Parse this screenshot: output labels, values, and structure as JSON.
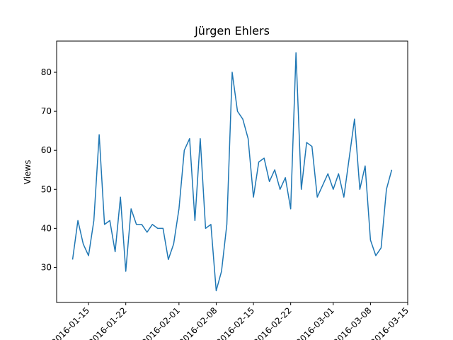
{
  "chart_data": {
    "type": "line",
    "title": "Jürgen Ehlers",
    "xlabel": "",
    "ylabel": "Views",
    "grid": false,
    "xlim": [
      "2016-01-09",
      "2016-03-15"
    ],
    "ylim": [
      21,
      88
    ],
    "x_ticks": [
      "2016-01-15",
      "2016-01-22",
      "2016-02-01",
      "2016-02-08",
      "2016-02-15",
      "2016-02-22",
      "2016-03-01",
      "2016-03-08",
      "2016-03-15"
    ],
    "x_tick_labels": [
      "2016-01-15",
      "2016-01-22",
      "2016-02-01",
      "2016-02-08",
      "2016-02-15",
      "2016-02-22",
      "2016-03-01",
      "2016-03-08",
      "2016-03-15"
    ],
    "y_ticks": [
      30,
      40,
      50,
      60,
      70,
      80
    ],
    "y_tick_labels": [
      "30",
      "40",
      "50",
      "60",
      "70",
      "80"
    ],
    "series": [
      {
        "color": "#1f77b4",
        "x": [
          "2016-01-12",
          "2016-01-13",
          "2016-01-14",
          "2016-01-15",
          "2016-01-16",
          "2016-01-17",
          "2016-01-18",
          "2016-01-19",
          "2016-01-20",
          "2016-01-21",
          "2016-01-22",
          "2016-01-23",
          "2016-01-24",
          "2016-01-25",
          "2016-01-26",
          "2016-01-27",
          "2016-01-28",
          "2016-01-29",
          "2016-01-30",
          "2016-01-31",
          "2016-02-01",
          "2016-02-02",
          "2016-02-03",
          "2016-02-04",
          "2016-02-05",
          "2016-02-06",
          "2016-02-07",
          "2016-02-08",
          "2016-02-09",
          "2016-02-10",
          "2016-02-11",
          "2016-02-12",
          "2016-02-13",
          "2016-02-14",
          "2016-02-15",
          "2016-02-16",
          "2016-02-17",
          "2016-02-18",
          "2016-02-19",
          "2016-02-20",
          "2016-02-21",
          "2016-02-22",
          "2016-02-23",
          "2016-02-24",
          "2016-02-25",
          "2016-02-26",
          "2016-02-27",
          "2016-02-28",
          "2016-02-29",
          "2016-03-01",
          "2016-03-02",
          "2016-03-03",
          "2016-03-04",
          "2016-03-05",
          "2016-03-06",
          "2016-03-07",
          "2016-03-08",
          "2016-03-09",
          "2016-03-10",
          "2016-03-11",
          "2016-03-12"
        ],
        "values": [
          32,
          42,
          36,
          33,
          42,
          64,
          41,
          42,
          34,
          48,
          29,
          45,
          41,
          41,
          39,
          41,
          40,
          40,
          32,
          36,
          45,
          60,
          63,
          42,
          63,
          40,
          41,
          24,
          29,
          41,
          80,
          70,
          68,
          63,
          48,
          57,
          58,
          52,
          55,
          50,
          53,
          45,
          85,
          50,
          62,
          61,
          48,
          51,
          54,
          50,
          54,
          48,
          58,
          68,
          50,
          56,
          37,
          33,
          35,
          50,
          55
        ]
      }
    ]
  }
}
